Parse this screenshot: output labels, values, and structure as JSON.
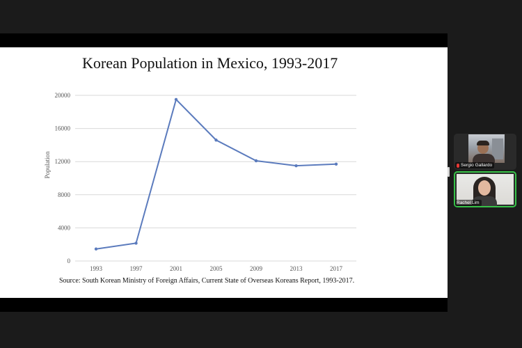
{
  "slide": {
    "title": "Korean Population in Mexico, 1993-2017",
    "source": "Source: South Korean Ministry of Foreign Affairs, Current State of Overseas Koreans Report, 1993-2017."
  },
  "chart_data": {
    "type": "line",
    "title": "Korean Population in Mexico, 1993-2017",
    "xlabel": "",
    "ylabel": "Population",
    "categories": [
      "1993",
      "1997",
      "2001",
      "2005",
      "2009",
      "2013",
      "2017"
    ],
    "values": [
      1450,
      2150,
      19500,
      14600,
      12100,
      11500,
      11700
    ],
    "y_ticks": [
      "0",
      "4000",
      "8000",
      "12000",
      "16000",
      "20000"
    ],
    "ylim": [
      0,
      20000
    ],
    "grid": "horizontal",
    "line_color": "#5b7bbd"
  },
  "participants": [
    {
      "name": "Sergio Gallardo",
      "muted": true
    },
    {
      "name": "Rachel Lim",
      "muted": false,
      "active_speaker": true
    }
  ],
  "colors": {
    "active_speaker_border": "#37c248",
    "muted_mic": "#e53935"
  }
}
